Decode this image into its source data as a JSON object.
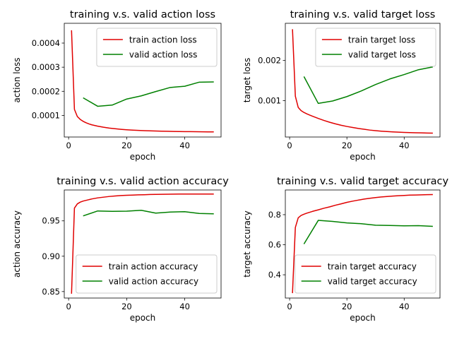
{
  "colors": {
    "train": "#e00000",
    "valid": "#008000",
    "axes": "#000000"
  },
  "chart_data": [
    {
      "type": "line",
      "title": "training v.s. valid action loss",
      "xlabel": "epoch",
      "ylabel": "action loss",
      "xlim": [
        -1.5,
        52.5
      ],
      "ylim": [
        1.05e-05,
        0.000482
      ],
      "xticks": [
        {
          "v": 0,
          "label": "0"
        },
        {
          "v": 20,
          "label": "20"
        },
        {
          "v": 40,
          "label": "40"
        }
      ],
      "yticks": [
        {
          "v": 0.0001,
          "label": "0.0001"
        },
        {
          "v": 0.0002,
          "label": "0.0002"
        },
        {
          "v": 0.0003,
          "label": "0.0003"
        },
        {
          "v": 0.0004,
          "label": "0.0004"
        }
      ],
      "legend": "top-right",
      "series": [
        {
          "name": "train action loss",
          "color": "train",
          "x": [
            1,
            2,
            3,
            4,
            5,
            6,
            7,
            8,
            10,
            12,
            14,
            16,
            18,
            20,
            22,
            24,
            26,
            28,
            30,
            32,
            34,
            36,
            38,
            40,
            42,
            44,
            46,
            48,
            50
          ],
          "y": [
            0.000453,
            0.000125,
            9.55e-05,
            8.35e-05,
            7.55e-05,
            6.95e-05,
            6.48e-05,
            6.1e-05,
            5.55e-05,
            5.1e-05,
            4.75e-05,
            4.48e-05,
            4.25e-05,
            4.05e-05,
            3.9e-05,
            3.78e-05,
            3.68e-05,
            3.6e-05,
            3.53e-05,
            3.47e-05,
            3.42e-05,
            3.37e-05,
            3.33e-05,
            3.3e-05,
            3.27e-05,
            3.24e-05,
            3.21e-05,
            3.19e-05,
            3.17e-05
          ]
        },
        {
          "name": "valid action loss",
          "color": "valid",
          "x": [
            5,
            10,
            15,
            20,
            25,
            30,
            35,
            40,
            45,
            50
          ],
          "y": [
            0.000173,
            0.000138,
            0.000143,
            0.000168,
            0.000181,
            0.000199,
            0.000216,
            0.000221,
            0.000238,
            0.000239
          ]
        }
      ]
    },
    {
      "type": "line",
      "title": "training v.s. valid target loss",
      "xlabel": "epoch",
      "ylabel": "target loss",
      "xlim": [
        -1.5,
        52.5
      ],
      "ylim": [
        9.22e-05,
        0.002927
      ],
      "xticks": [
        {
          "v": 0,
          "label": "0"
        },
        {
          "v": 20,
          "label": "20"
        },
        {
          "v": 40,
          "label": "40"
        }
      ],
      "yticks": [
        {
          "v": 0.001,
          "label": "0.001"
        },
        {
          "v": 0.002,
          "label": "0.002"
        }
      ],
      "legend": "top-right",
      "series": [
        {
          "name": "train target loss",
          "color": "train",
          "x": [
            1,
            2,
            3,
            4,
            5,
            6,
            7,
            8,
            10,
            12,
            14,
            16,
            18,
            20,
            22,
            24,
            26,
            28,
            30,
            32,
            34,
            36,
            38,
            40,
            42,
            44,
            46,
            48,
            50
          ],
          "y": [
            0.00278,
            0.00111,
            0.00083,
            0.00075,
            0.000705,
            0.00067,
            0.00064,
            0.00061,
            0.000555,
            0.000505,
            0.00046,
            0.00042,
            0.000385,
            0.000355,
            0.00033,
            0.000305,
            0.000285,
            0.000265,
            0.00025,
            0.000238,
            0.000228,
            0.00022,
            0.000213,
            0.000207,
            0.000202,
            0.000198,
            0.000195,
            0.000192,
            0.00019
          ]
        },
        {
          "name": "valid target loss",
          "color": "valid",
          "x": [
            5,
            10,
            15,
            20,
            25,
            30,
            35,
            40,
            45,
            50
          ],
          "y": [
            0.0016,
            0.00093,
            0.00099,
            0.0011,
            0.00124,
            0.0014,
            0.00154,
            0.00165,
            0.00177,
            0.00184
          ]
        }
      ]
    },
    {
      "type": "line",
      "title": "training v.s. valid action accuracy",
      "xlabel": "epoch",
      "ylabel": "action accuracy",
      "xlim": [
        -1.5,
        52.5
      ],
      "ylim": [
        0.84085,
        0.99368
      ],
      "xticks": [
        {
          "v": 0,
          "label": "0"
        },
        {
          "v": 20,
          "label": "20"
        },
        {
          "v": 40,
          "label": "40"
        }
      ],
      "yticks": [
        {
          "v": 0.85,
          "label": "0.85"
        },
        {
          "v": 0.9,
          "label": "0.90"
        },
        {
          "v": 0.95,
          "label": "0.95"
        }
      ],
      "legend": "bottom-right",
      "series": [
        {
          "name": "train action accuracy",
          "color": "train",
          "x": [
            1,
            2,
            3,
            4,
            5,
            6,
            7,
            8,
            10,
            12,
            14,
            16,
            18,
            20,
            22,
            24,
            26,
            28,
            30,
            32,
            34,
            36,
            38,
            40,
            42,
            44,
            46,
            48,
            50
          ],
          "y": [
            0.847,
            0.968,
            0.974,
            0.9765,
            0.978,
            0.979,
            0.98,
            0.981,
            0.9825,
            0.9835,
            0.9845,
            0.9852,
            0.9858,
            0.9862,
            0.9865,
            0.9868,
            0.987,
            0.9873,
            0.9875,
            0.9876,
            0.9877,
            0.9878,
            0.9879,
            0.988,
            0.988,
            0.988,
            0.988,
            0.988,
            0.988
          ]
        },
        {
          "name": "valid action accuracy",
          "color": "valid",
          "x": [
            5,
            10,
            15,
            20,
            25,
            30,
            35,
            40,
            45,
            50
          ],
          "y": [
            0.957,
            0.964,
            0.9635,
            0.9637,
            0.965,
            0.961,
            0.9625,
            0.963,
            0.9605,
            0.96
          ]
        }
      ]
    },
    {
      "type": "line",
      "title": "training v.s. valid target accuracy",
      "xlabel": "epoch",
      "ylabel": "target accuracy",
      "xlim": [
        -1.5,
        52.5
      ],
      "ylim": [
        0.2453,
        0.9643
      ],
      "xticks": [
        {
          "v": 0,
          "label": "0"
        },
        {
          "v": 20,
          "label": "20"
        },
        {
          "v": 40,
          "label": "40"
        }
      ],
      "yticks": [
        {
          "v": 0.4,
          "label": "0.4"
        },
        {
          "v": 0.6,
          "label": "0.6"
        },
        {
          "v": 0.8,
          "label": "0.8"
        }
      ],
      "legend": "bottom-right",
      "series": [
        {
          "name": "train target accuracy",
          "color": "train",
          "x": [
            1,
            2,
            3,
            4,
            5,
            6,
            8,
            10,
            12,
            14,
            16,
            18,
            20,
            22,
            24,
            26,
            28,
            30,
            32,
            34,
            36,
            38,
            40,
            42,
            44,
            46,
            48,
            50
          ],
          "y": [
            0.278,
            0.715,
            0.779,
            0.795,
            0.803,
            0.81,
            0.822,
            0.832,
            0.843,
            0.852,
            0.863,
            0.872,
            0.882,
            0.89,
            0.897,
            0.904,
            0.909,
            0.914,
            0.918,
            0.921,
            0.924,
            0.926,
            0.928,
            0.93,
            0.931,
            0.932,
            0.933,
            0.934
          ]
        },
        {
          "name": "valid target accuracy",
          "color": "valid",
          "x": [
            5,
            10,
            15,
            20,
            25,
            30,
            35,
            40,
            45,
            50
          ],
          "y": [
            0.605,
            0.762,
            0.755,
            0.745,
            0.74,
            0.73,
            0.728,
            0.726,
            0.727,
            0.722
          ]
        }
      ]
    }
  ]
}
